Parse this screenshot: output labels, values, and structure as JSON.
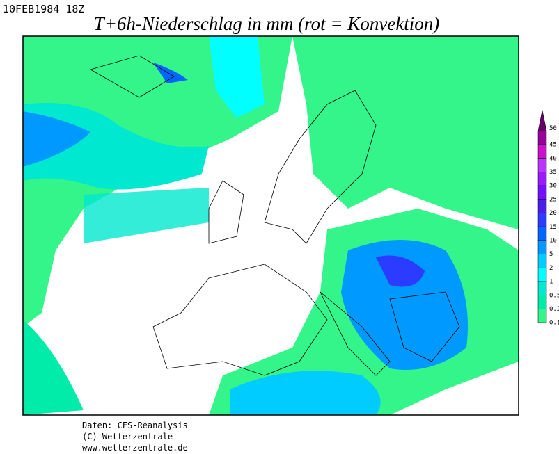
{
  "header": {
    "date": "10FEB1984 18Z",
    "title": "T+6h-Niederschlag in mm (rot = Konvektion)"
  },
  "legend": {
    "levels": [
      0.1,
      0.2,
      0.5,
      1,
      2,
      5,
      10,
      15,
      20,
      25,
      30,
      35,
      40,
      45,
      50
    ],
    "colors": [
      "#33f58a",
      "#00eca8",
      "#00e8d0",
      "#00ffff",
      "#00ccff",
      "#0099ff",
      "#0066ff",
      "#2b3bff",
      "#4b1ee8",
      "#7210ff",
      "#9a1aff",
      "#bb33ff",
      "#cc11cc",
      "#990099",
      "#660066"
    ]
  },
  "footer": {
    "lines": [
      "Daten: CFS-Reanalysis",
      "(C) Wetterzentrale",
      "www.wetterzentrale.de"
    ]
  }
}
